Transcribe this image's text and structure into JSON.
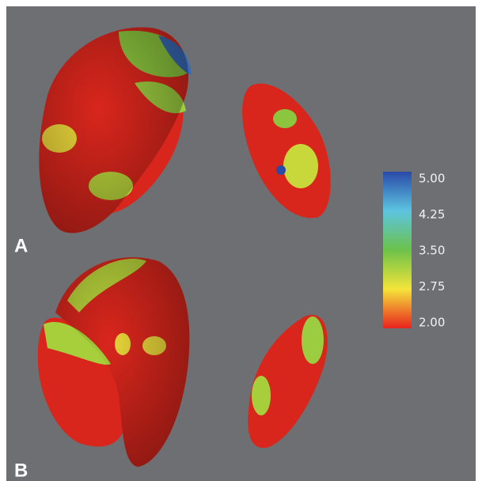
{
  "panels": [
    {
      "label": "A"
    },
    {
      "label": "B"
    }
  ],
  "colorbar": {
    "ticks": [
      {
        "value": 5,
        "label": "5.00"
      },
      {
        "value": 4.25,
        "label": "4.25"
      },
      {
        "value": 3.5,
        "label": "3.50"
      },
      {
        "value": 2.75,
        "label": "2.75"
      },
      {
        "value": 2,
        "label": "2.00"
      }
    ]
  }
}
